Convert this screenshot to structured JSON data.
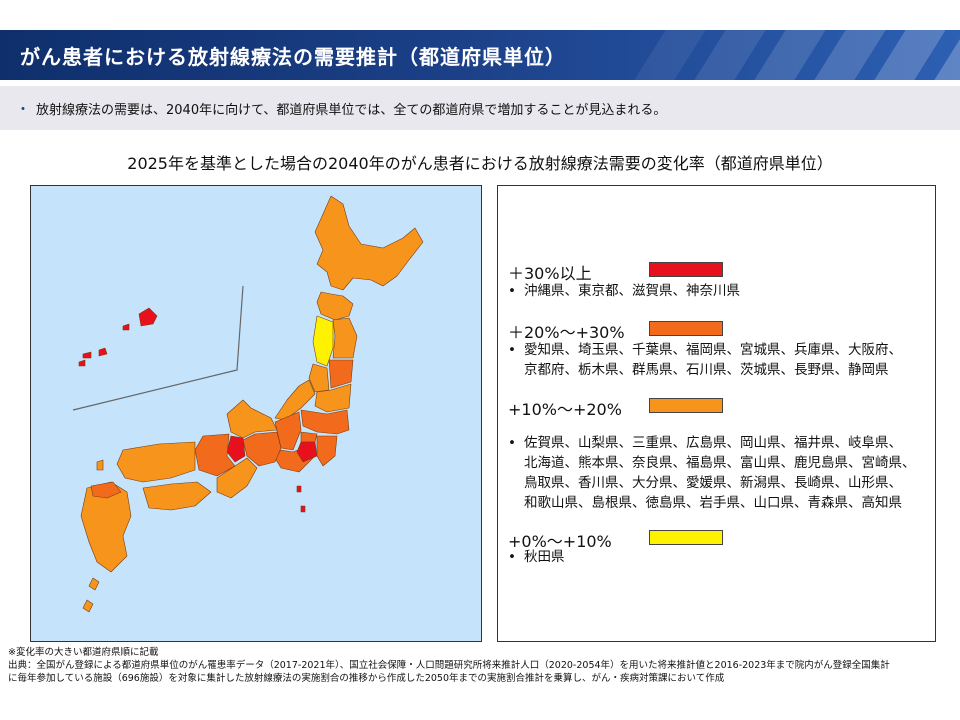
{
  "header": {
    "title": "がん患者における放射線療法の需要推計（都道府県単位）"
  },
  "summary": {
    "bullet": "・",
    "text": "放射線療法の需要は、2040年に向けて、都道府県単位では、全ての都道府県で増加することが見込まれる。"
  },
  "chart_title": "2025年を基準とした場合の2040年のがん患者における放射線療法需要の変化率（都道府県単位）",
  "colors": {
    "cat30": "#e8101c",
    "cat20": "#f26a1c",
    "cat10": "#f6941c",
    "cat0": "#fff200",
    "sea": "#c5e4fb",
    "border": "#7a3b10"
  },
  "legend": {
    "categories": [
      {
        "label": "＋30%以上",
        "color": "#e8101c",
        "lines": [
          "沖縄県、東京都、滋賀県、神奈川県"
        ]
      },
      {
        "label": "＋20%～+30%",
        "color": "#f26a1c",
        "lines": [
          "愛知県、埼玉県、千葉県、福岡県、宮城県、兵庫県、大阪府、",
          "京都府、栃木県、群馬県、石川県、茨城県、長野県、静岡県"
        ]
      },
      {
        "label": "+10%～+20%",
        "color": "#f6941c",
        "lines": [
          "佐賀県、山梨県、三重県、広島県、岡山県、福井県、岐阜県、",
          "北海道、熊本県、奈良県、福島県、富山県、鹿児島県、宮崎県、",
          "鳥取県、香川県、大分県、愛媛県、新潟県、長崎県、山形県、",
          "和歌山県、島根県、徳島県、岩手県、山口県、青森県、高知県"
        ]
      },
      {
        "label": "+0%～+10%",
        "color": "#fff200",
        "lines": [
          "秋田県"
        ]
      }
    ],
    "bullet": "•"
  },
  "footnotes": {
    "note": "※変化率の大きい都道府県順に記載",
    "source_1": "出典：全国がん登録による都道府県単位のがん罹患率データ（2017-2021年）、国立社会保障・人口問題研究所将来推計人口（2020-2054年）を用いた将来推計値と2016-2023年まで院内がん登録全国集計",
    "source_2": "に毎年参加している施設（696施設）を対象に集計した放射線療法の実施割合の推移から作成した2050年までの実施割合推計を乗算し、がん・疾病対策課において作成"
  }
}
